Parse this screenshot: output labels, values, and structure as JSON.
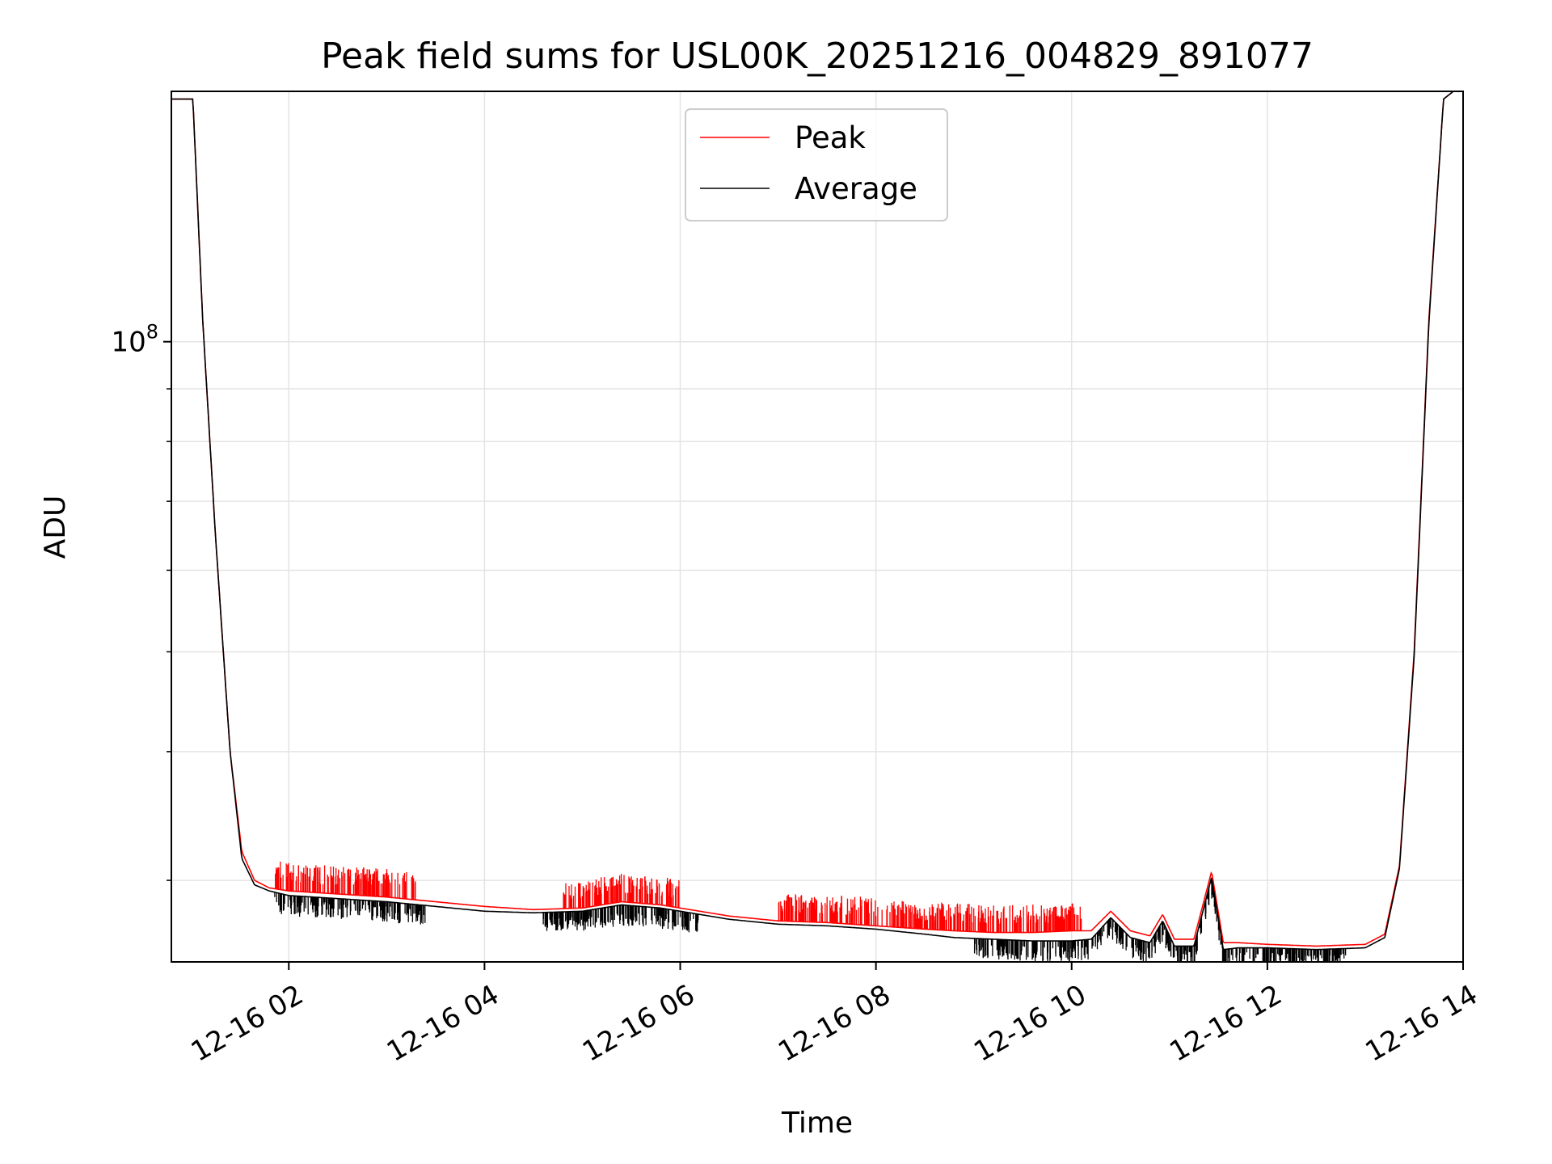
{
  "chart_data": {
    "type": "line",
    "title": "Peak field sums for USL00K_20251216_004829_891077",
    "xlabel": "Time",
    "ylabel": "ADU",
    "yscale": "log",
    "grid": true,
    "legend_position": "top-center",
    "x_range_hours": [
      0.8,
      14.0
    ],
    "ylim": [
      25000000,
      175000000
    ],
    "x_ticks": [
      {
        "hour": 2,
        "label": "12-16 02"
      },
      {
        "hour": 4,
        "label": "12-16 04"
      },
      {
        "hour": 6,
        "label": "12-16 06"
      },
      {
        "hour": 8,
        "label": "12-16 08"
      },
      {
        "hour": 10,
        "label": "12-16 10"
      },
      {
        "hour": 12,
        "label": "12-16 12"
      },
      {
        "hour": 14,
        "label": "12-16 14"
      }
    ],
    "y_major_ticks": [
      {
        "value": 100000000,
        "base": "10",
        "exp": "8"
      }
    ],
    "y_minor_ticks": [
      30000000,
      40000000,
      50000000,
      60000000,
      70000000,
      80000000,
      90000000,
      200000000
    ],
    "x_hours": [
      0.8,
      0.95,
      1.02,
      1.12,
      1.25,
      1.4,
      1.52,
      1.65,
      1.8,
      2.0,
      2.5,
      3.0,
      3.5,
      4.0,
      4.5,
      5.0,
      5.4,
      5.8,
      6.1,
      6.5,
      7.0,
      7.5,
      8.0,
      8.5,
      8.8,
      9.2,
      9.6,
      10.0,
      10.2,
      10.4,
      10.6,
      10.8,
      10.93,
      11.05,
      11.25,
      11.43,
      11.55,
      11.7,
      12.0,
      12.5,
      13.0,
      13.2,
      13.35,
      13.5,
      13.65,
      13.8,
      13.9
    ],
    "series": [
      {
        "name": "Peak",
        "color": "#ff0000",
        "values": [
          172000000,
          172000000,
          172000000,
          105000000,
          65000000,
          40000000,
          32000000,
          30000000,
          29500000,
          29300000,
          29100000,
          28900000,
          28600000,
          28300000,
          28100000,
          28200000,
          28600000,
          28400000,
          28100000,
          27700000,
          27400000,
          27300000,
          27100000,
          26900000,
          26800000,
          26700000,
          26700000,
          26800000,
          26800000,
          28000000,
          26800000,
          26500000,
          27800000,
          26300000,
          26300000,
          30600000,
          26100000,
          26100000,
          26000000,
          25900000,
          26000000,
          26600000,
          31000000,
          50000000,
          105000000,
          172000000,
          175000000
        ],
        "spike_ranges_hours": [
          [
            1.85,
            3.3
          ],
          [
            4.8,
            6.0
          ],
          [
            7.0,
            10.1
          ]
        ]
      },
      {
        "name": "Average",
        "color": "#000000",
        "values": [
          172000000,
          172000000,
          172000000,
          105000000,
          65000000,
          40000000,
          31500000,
          29700000,
          29300000,
          29000000,
          28800000,
          28600000,
          28300000,
          28000000,
          27900000,
          28000000,
          28400000,
          28200000,
          27900000,
          27500000,
          27200000,
          27100000,
          26900000,
          26600000,
          26400000,
          26300000,
          26200000,
          26200000,
          26300000,
          27600000,
          26400000,
          26100000,
          27400000,
          25900000,
          25900000,
          30200000,
          25700000,
          25800000,
          25800000,
          25700000,
          25800000,
          26400000,
          30800000,
          49500000,
          104000000,
          172000000,
          175000000
        ],
        "noise_ranges_hours": [
          [
            1.85,
            3.4
          ],
          [
            4.6,
            6.2
          ],
          [
            9.0,
            12.8
          ]
        ]
      }
    ]
  }
}
